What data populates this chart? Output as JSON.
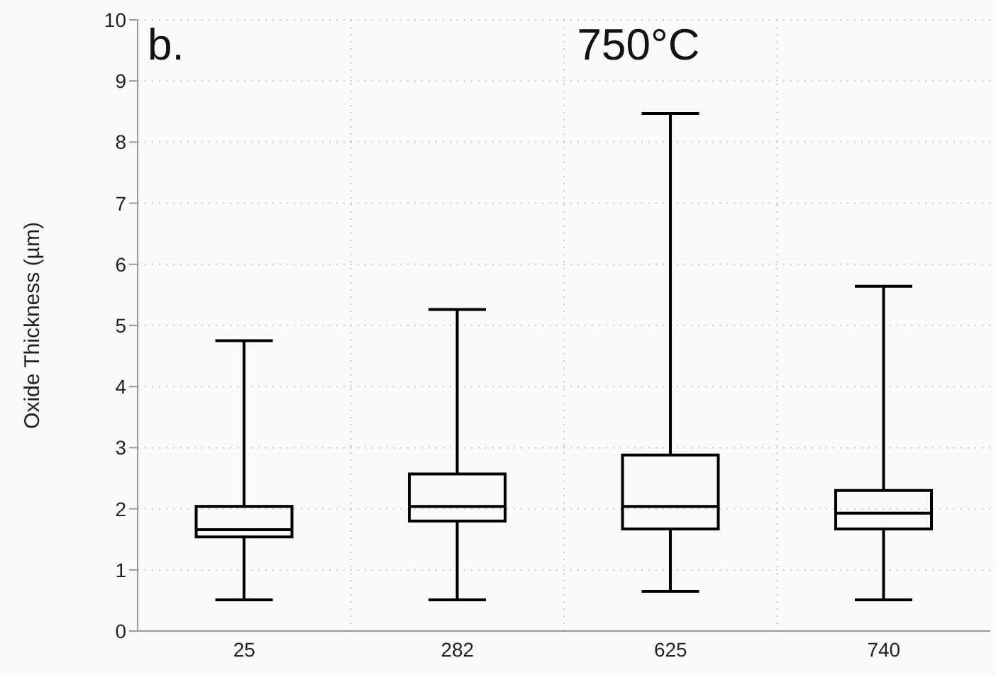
{
  "chart_data": {
    "type": "box",
    "title": "750°C",
    "annotations": [
      "b."
    ],
    "ylabel": "Oxide Thickness (µm)",
    "categories": [
      "25",
      "282",
      "625",
      "740"
    ],
    "boxes": [
      {
        "low": 0.51,
        "q1": 1.54,
        "median": 1.66,
        "q3": 2.04,
        "high": 4.75
      },
      {
        "low": 0.51,
        "q1": 1.8,
        "median": 2.04,
        "q3": 2.57,
        "high": 5.26
      },
      {
        "low": 0.65,
        "q1": 1.67,
        "median": 2.04,
        "q3": 2.88,
        "high": 8.47
      },
      {
        "low": 0.51,
        "q1": 1.67,
        "median": 1.93,
        "q3": 2.3,
        "high": 5.64
      }
    ],
    "color": "#000000",
    "ylim": [
      0,
      10
    ],
    "yticks": [
      0,
      1,
      2,
      3,
      4,
      5,
      6,
      7,
      8,
      9,
      10
    ],
    "grid": true
  }
}
